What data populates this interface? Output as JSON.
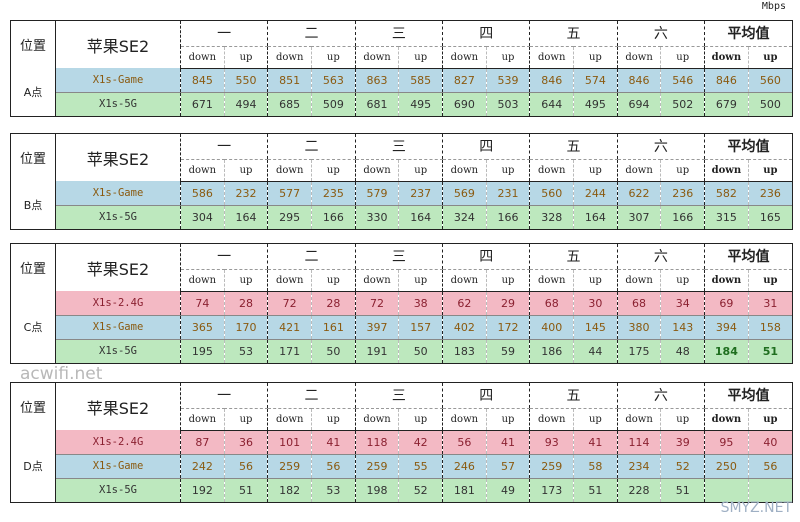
{
  "unit": "Mbps",
  "columns": [
    "一",
    "二",
    "三",
    "四",
    "五",
    "六"
  ],
  "avg_label": "平均值",
  "pos_header": "位置",
  "device": "苹果SE2",
  "down_label": "down",
  "up_label": "up",
  "colors": {
    "pink": "#f3b9c4",
    "blue": "#b7d8e6",
    "green": "#bde8be"
  },
  "tables": [
    {
      "location": "A点",
      "rows": [
        {
          "name": "X1s-Game",
          "color": "blue",
          "values": [
            "845",
            "550",
            "851",
            "563",
            "863",
            "585",
            "827",
            "539",
            "846",
            "574",
            "846",
            "546"
          ],
          "avg": [
            "846",
            "560"
          ]
        },
        {
          "name": "X1s-5G",
          "color": "green",
          "values": [
            "671",
            "494",
            "685",
            "509",
            "681",
            "495",
            "690",
            "503",
            "644",
            "495",
            "694",
            "502"
          ],
          "avg": [
            "679",
            "500"
          ]
        }
      ]
    },
    {
      "location": "B点",
      "rows": [
        {
          "name": "X1s-Game",
          "color": "blue",
          "values": [
            "586",
            "232",
            "577",
            "235",
            "579",
            "237",
            "569",
            "231",
            "560",
            "244",
            "622",
            "236"
          ],
          "avg": [
            "582",
            "236"
          ]
        },
        {
          "name": "X1s-5G",
          "color": "green",
          "values": [
            "304",
            "164",
            "295",
            "166",
            "330",
            "164",
            "324",
            "166",
            "328",
            "164",
            "307",
            "166"
          ],
          "avg": [
            "315",
            "165"
          ]
        }
      ]
    },
    {
      "location": "C点",
      "rows": [
        {
          "name": "X1s-2.4G",
          "color": "pink",
          "values": [
            "74",
            "28",
            "72",
            "28",
            "72",
            "38",
            "62",
            "29",
            "68",
            "30",
            "68",
            "34"
          ],
          "avg": [
            "69",
            "31"
          ]
        },
        {
          "name": "X1s-Game",
          "color": "blue",
          "values": [
            "365",
            "170",
            "421",
            "161",
            "397",
            "157",
            "402",
            "172",
            "400",
            "145",
            "380",
            "143"
          ],
          "avg": [
            "394",
            "158"
          ]
        },
        {
          "name": "X1s-5G",
          "color": "green",
          "values": [
            "195",
            "53",
            "171",
            "50",
            "191",
            "50",
            "183",
            "59",
            "186",
            "44",
            "175",
            "48"
          ],
          "avg": [
            "184",
            "51"
          ],
          "avg_bold": true
        }
      ]
    },
    {
      "location": "D点",
      "rows": [
        {
          "name": "X1s-2.4G",
          "color": "pink",
          "values": [
            "87",
            "36",
            "101",
            "41",
            "118",
            "42",
            "56",
            "41",
            "93",
            "41",
            "114",
            "39"
          ],
          "avg": [
            "95",
            "40"
          ]
        },
        {
          "name": "X1s-Game",
          "color": "blue",
          "values": [
            "242",
            "56",
            "259",
            "56",
            "259",
            "55",
            "246",
            "57",
            "259",
            "58",
            "234",
            "52"
          ],
          "avg": [
            "250",
            "56"
          ]
        },
        {
          "name": "X1s-5G",
          "color": "green",
          "values": [
            "192",
            "51",
            "182",
            "53",
            "198",
            "52",
            "181",
            "49",
            "173",
            "51",
            "228",
            "51"
          ],
          "avg": [
            "",
            ""
          ]
        }
      ]
    }
  ],
  "watermark": "acwifi.net",
  "watermark2": "SMYZ.NET"
}
